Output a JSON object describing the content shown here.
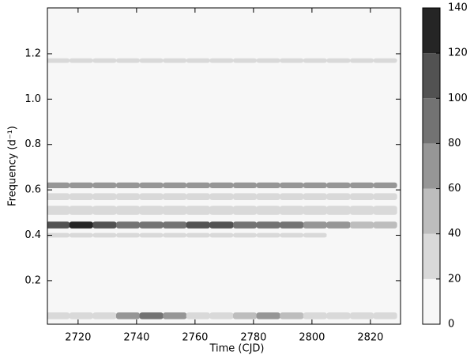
{
  "chart_data": {
    "type": "contour",
    "x_label": "Time (CJD)",
    "y_label": "Frequency (d⁻¹)",
    "xlim": [
      2709.5,
      2830.3
    ],
    "xticks": [
      2720,
      2740,
      2760,
      2780,
      2800,
      2820
    ],
    "ylim": [
      0.008,
      1.402
    ],
    "yticks": [
      {
        "value": 0.2,
        "label": "0.2"
      },
      {
        "value": 0.4,
        "label": "0.4"
      },
      {
        "value": 0.6,
        "label": "0.6"
      },
      {
        "value": 0.8,
        "label": "0.8"
      },
      {
        "value": 1.0,
        "label": "1.0"
      },
      {
        "value": 1.2,
        "label": "1.2"
      }
    ],
    "x": [
      2713,
      2721,
      2729,
      2737,
      2745,
      2753,
      2761,
      2769,
      2777,
      2785,
      2793,
      2801,
      2809,
      2817,
      2825
    ],
    "cell_width": 8,
    "background": "#f7f7f7",
    "bands": [
      {
        "y": 1.17,
        "height": 0.02,
        "values": [
          30,
          30,
          30,
          30,
          30,
          30,
          30,
          30,
          30,
          30,
          30,
          30,
          30,
          30,
          30
        ]
      },
      {
        "y": 0.62,
        "height": 0.025,
        "values": [
          60,
          70,
          70,
          70,
          70,
          70,
          70,
          70,
          70,
          70,
          70,
          60,
          60,
          60,
          60
        ]
      },
      {
        "y": 0.57,
        "height": 0.03,
        "values": [
          20,
          30,
          20,
          30,
          20,
          20,
          30,
          20,
          20,
          30,
          20,
          20,
          30,
          20,
          20
        ]
      },
      {
        "y": 0.51,
        "height": 0.04,
        "values": [
          20,
          20,
          30,
          20,
          20,
          20,
          20,
          20,
          20,
          20,
          30,
          20,
          20,
          20,
          20
        ]
      },
      {
        "y": 0.445,
        "height": 0.03,
        "values": [
          110,
          130,
          100,
          90,
          90,
          90,
          100,
          100,
          90,
          80,
          80,
          70,
          60,
          50,
          40
        ]
      },
      {
        "y": 0.4,
        "height": 0.02,
        "values": [
          20,
          20,
          20,
          20,
          20,
          20,
          20,
          20,
          20,
          20,
          20,
          20,
          10,
          10,
          10
        ]
      },
      {
        "y": 0.045,
        "height": 0.03,
        "values": [
          20,
          20,
          30,
          70,
          80,
          70,
          20,
          20,
          50,
          60,
          50,
          20,
          20,
          30,
          20
        ]
      }
    ],
    "levels": [
      0,
      20,
      40,
      60,
      80,
      100,
      120,
      140
    ],
    "colors": [
      "#f7f7f7",
      "#d9d9d9",
      "#bdbdbd",
      "#969696",
      "#737373",
      "#525252",
      "#252525"
    ]
  }
}
